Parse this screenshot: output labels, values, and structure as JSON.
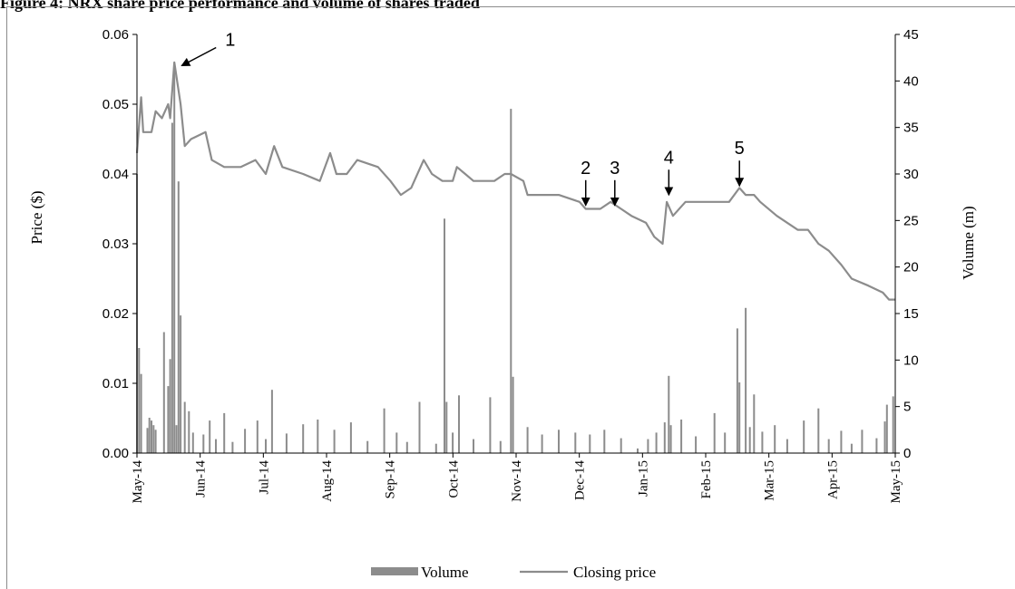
{
  "figure_title": "Figure 4: NRX share price performance and volume of shares traded",
  "chart_data": {
    "type": "bar+line",
    "left_axis": {
      "label": "Price ($)",
      "range": [
        0,
        0.06
      ],
      "ticks": [
        "0.00",
        "0.01",
        "0.02",
        "0.03",
        "0.04",
        "0.05",
        "0.06"
      ]
    },
    "right_axis": {
      "label": "Volume (m)",
      "range": [
        0,
        45
      ],
      "ticks": [
        "0",
        "5",
        "10",
        "15",
        "20",
        "25",
        "30",
        "35",
        "40",
        "45"
      ]
    },
    "x_axis": {
      "range": [
        "2014-05-01",
        "2015-05-01"
      ],
      "ticks": [
        "May-14",
        "Jun-14",
        "Jul-14",
        "Aug-14",
        "Sep-14",
        "Oct-14",
        "Nov-14",
        "Dec-14",
        "Jan-15",
        "Feb-15",
        "Mar-15",
        "Apr-15",
        "May-15"
      ]
    },
    "grid": false,
    "legend_position": "bottom",
    "series": [
      {
        "name": "Closing price",
        "type": "line",
        "axis": "left",
        "color": "#8c8c8c",
        "points": [
          [
            "2014-05-01",
            0.043
          ],
          [
            "2014-05-03",
            0.051
          ],
          [
            "2014-05-04",
            0.046
          ],
          [
            "2014-05-08",
            0.046
          ],
          [
            "2014-05-10",
            0.049
          ],
          [
            "2014-05-13",
            0.048
          ],
          [
            "2014-05-16",
            0.05
          ],
          [
            "2014-05-17",
            0.048
          ],
          [
            "2014-05-19",
            0.056
          ],
          [
            "2014-05-22",
            0.05
          ],
          [
            "2014-05-24",
            0.044
          ],
          [
            "2014-05-27",
            0.045
          ],
          [
            "2014-06-03",
            0.046
          ],
          [
            "2014-06-06",
            0.042
          ],
          [
            "2014-06-12",
            0.041
          ],
          [
            "2014-06-20",
            0.041
          ],
          [
            "2014-06-27",
            0.042
          ],
          [
            "2014-07-02",
            0.04
          ],
          [
            "2014-07-06",
            0.044
          ],
          [
            "2014-07-10",
            0.041
          ],
          [
            "2014-07-20",
            0.04
          ],
          [
            "2014-07-28",
            0.039
          ],
          [
            "2014-08-02",
            0.043
          ],
          [
            "2014-08-05",
            0.04
          ],
          [
            "2014-08-10",
            0.04
          ],
          [
            "2014-08-15",
            0.042
          ],
          [
            "2014-08-25",
            0.041
          ],
          [
            "2014-08-31",
            0.039
          ],
          [
            "2014-09-05",
            0.037
          ],
          [
            "2014-09-10",
            0.038
          ],
          [
            "2014-09-16",
            0.042
          ],
          [
            "2014-09-20",
            0.04
          ],
          [
            "2014-09-25",
            0.039
          ],
          [
            "2014-09-30",
            0.039
          ],
          [
            "2014-10-02",
            0.041
          ],
          [
            "2014-10-06",
            0.04
          ],
          [
            "2014-10-10",
            0.039
          ],
          [
            "2014-10-20",
            0.039
          ],
          [
            "2014-10-25",
            0.04
          ],
          [
            "2014-10-28",
            0.04
          ],
          [
            "2014-11-03",
            0.039
          ],
          [
            "2014-11-05",
            0.037
          ],
          [
            "2014-11-12",
            0.037
          ],
          [
            "2014-11-20",
            0.037
          ],
          [
            "2014-11-30",
            0.036
          ],
          [
            "2014-12-03",
            0.035
          ],
          [
            "2014-12-10",
            0.035
          ],
          [
            "2014-12-15",
            0.036
          ],
          [
            "2014-12-20",
            0.035
          ],
          [
            "2014-12-25",
            0.034
          ],
          [
            "2015-01-01",
            0.033
          ],
          [
            "2015-01-05",
            0.031
          ],
          [
            "2015-01-09",
            0.03
          ],
          [
            "2015-01-11",
            0.036
          ],
          [
            "2015-01-14",
            0.034
          ],
          [
            "2015-01-20",
            0.036
          ],
          [
            "2015-01-30",
            0.036
          ],
          [
            "2015-02-10",
            0.036
          ],
          [
            "2015-02-15",
            0.038
          ],
          [
            "2015-02-18",
            0.037
          ],
          [
            "2015-02-22",
            0.037
          ],
          [
            "2015-02-25",
            0.036
          ],
          [
            "2015-03-05",
            0.034
          ],
          [
            "2015-03-15",
            0.032
          ],
          [
            "2015-03-20",
            0.032
          ],
          [
            "2015-03-25",
            0.03
          ],
          [
            "2015-03-30",
            0.029
          ],
          [
            "2015-04-05",
            0.027
          ],
          [
            "2015-04-10",
            0.025
          ],
          [
            "2015-04-18",
            0.024
          ],
          [
            "2015-04-25",
            0.023
          ],
          [
            "2015-04-28",
            0.022
          ],
          [
            "2015-05-01",
            0.022
          ]
        ]
      },
      {
        "name": "Volume",
        "type": "bar",
        "axis": "right",
        "color": "#8c8c8c",
        "points": [
          [
            "2014-05-01",
            30.0
          ],
          [
            "2014-05-02",
            11.3
          ],
          [
            "2014-05-03",
            8.5
          ],
          [
            "2014-05-06",
            2.7
          ],
          [
            "2014-05-07",
            3.8
          ],
          [
            "2014-05-08",
            3.5
          ],
          [
            "2014-05-09",
            3.0
          ],
          [
            "2014-05-10",
            2.5
          ],
          [
            "2014-05-14",
            13.0
          ],
          [
            "2014-05-16",
            7.2
          ],
          [
            "2014-05-17",
            10.1
          ],
          [
            "2014-05-18",
            35.5
          ],
          [
            "2014-05-19",
            41.5
          ],
          [
            "2014-05-20",
            3.0
          ],
          [
            "2014-05-21",
            29.2
          ],
          [
            "2014-05-22",
            14.8
          ],
          [
            "2014-05-24",
            5.5
          ],
          [
            "2014-05-26",
            4.5
          ],
          [
            "2014-05-28",
            2.2
          ],
          [
            "2014-06-02",
            2.0
          ],
          [
            "2014-06-05",
            3.5
          ],
          [
            "2014-06-08",
            1.5
          ],
          [
            "2014-06-12",
            4.3
          ],
          [
            "2014-06-16",
            1.2
          ],
          [
            "2014-06-22",
            2.6
          ],
          [
            "2014-06-28",
            3.5
          ],
          [
            "2014-07-02",
            1.5
          ],
          [
            "2014-07-05",
            6.8
          ],
          [
            "2014-07-12",
            2.1
          ],
          [
            "2014-07-20",
            3.1
          ],
          [
            "2014-07-27",
            3.6
          ],
          [
            "2014-08-04",
            2.5
          ],
          [
            "2014-08-12",
            3.3
          ],
          [
            "2014-08-20",
            1.3
          ],
          [
            "2014-08-28",
            4.8
          ],
          [
            "2014-09-03",
            2.2
          ],
          [
            "2014-09-08",
            1.2
          ],
          [
            "2014-09-14",
            5.5
          ],
          [
            "2014-09-22",
            1.0
          ],
          [
            "2014-09-26",
            25.2
          ],
          [
            "2014-09-27",
            5.5
          ],
          [
            "2014-09-30",
            2.2
          ],
          [
            "2014-10-03",
            6.2
          ],
          [
            "2014-10-10",
            1.5
          ],
          [
            "2014-10-18",
            6.0
          ],
          [
            "2014-10-23",
            1.3
          ],
          [
            "2014-10-28",
            37.0
          ],
          [
            "2014-10-29",
            8.2
          ],
          [
            "2014-11-05",
            2.8
          ],
          [
            "2014-11-12",
            2.0
          ],
          [
            "2014-11-20",
            2.5
          ],
          [
            "2014-11-28",
            2.2
          ],
          [
            "2014-12-05",
            2.0
          ],
          [
            "2014-12-12",
            2.5
          ],
          [
            "2014-12-20",
            1.6
          ],
          [
            "2014-12-28",
            0.5
          ],
          [
            "2015-01-02",
            1.5
          ],
          [
            "2015-01-06",
            2.2
          ],
          [
            "2015-01-10",
            3.3
          ],
          [
            "2015-01-12",
            8.3
          ],
          [
            "2015-01-13",
            3.0
          ],
          [
            "2015-01-18",
            3.6
          ],
          [
            "2015-01-25",
            1.8
          ],
          [
            "2015-02-03",
            4.3
          ],
          [
            "2015-02-08",
            2.2
          ],
          [
            "2015-02-14",
            13.4
          ],
          [
            "2015-02-15",
            7.6
          ],
          [
            "2015-02-18",
            15.6
          ],
          [
            "2015-02-20",
            2.8
          ],
          [
            "2015-02-22",
            6.3
          ],
          [
            "2015-02-26",
            2.3
          ],
          [
            "2015-03-04",
            3.0
          ],
          [
            "2015-03-10",
            1.5
          ],
          [
            "2015-03-18",
            3.5
          ],
          [
            "2015-03-25",
            4.8
          ],
          [
            "2015-03-30",
            1.5
          ],
          [
            "2015-04-05",
            2.4
          ],
          [
            "2015-04-10",
            1.0
          ],
          [
            "2015-04-15",
            2.5
          ],
          [
            "2015-04-22",
            1.6
          ],
          [
            "2015-04-26",
            3.4
          ],
          [
            "2015-04-27",
            5.2
          ],
          [
            "2015-04-30",
            6.1
          ]
        ]
      }
    ],
    "annotations": [
      {
        "label": "1",
        "date": "2014-05-19",
        "price": 0.055
      },
      {
        "label": "2",
        "date": "2014-12-03",
        "price": 0.036
      },
      {
        "label": "3",
        "date": "2014-12-17",
        "price": 0.036
      },
      {
        "label": "4",
        "date": "2015-01-12",
        "price": 0.0375
      },
      {
        "label": "5",
        "date": "2015-02-15",
        "price": 0.0388
      }
    ]
  }
}
